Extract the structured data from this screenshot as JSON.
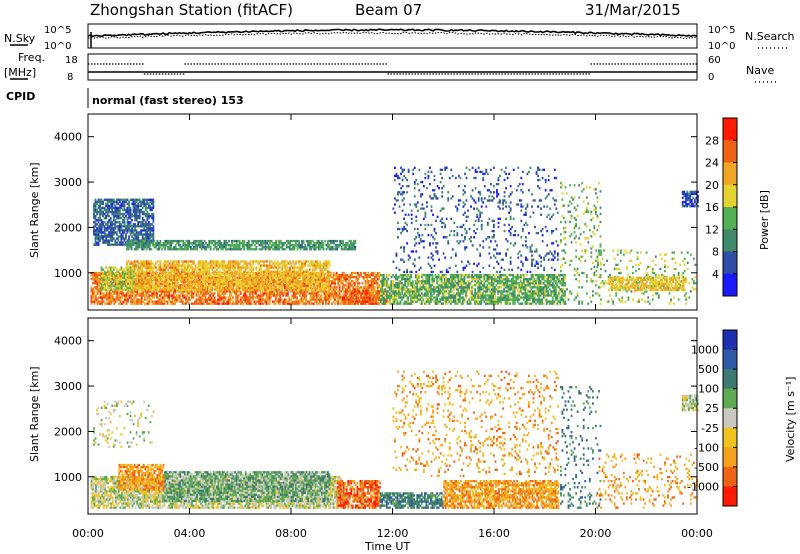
{
  "header": {
    "station": "Zhongshan Station (fitACF)",
    "beam": "Beam 07",
    "date": "31/Mar/2015"
  },
  "sky_panel": {
    "left_label": "N.Sky",
    "right_label": "N.Search",
    "ticks": [
      "10^5",
      "10^0"
    ]
  },
  "freq_panel": {
    "left_label_top": "Freq.",
    "left_label_bottom": "[MHz]",
    "left_ticks": [
      "18",
      "8"
    ],
    "right_label": "Nave",
    "right_ticks": [
      "60",
      "0"
    ]
  },
  "cpid": {
    "label": "CPID",
    "mode": "normal (fast stereo) 153"
  },
  "x_axis": {
    "title": "Time UT",
    "ticks": [
      "00:00",
      "04:00",
      "08:00",
      "12:00",
      "16:00",
      "20:00",
      "00:00"
    ]
  },
  "colors": {
    "power_scale": [
      "#1a1aff",
      "#2d4fa8",
      "#3e8a6a",
      "#52b052",
      "#e6d22e",
      "#f0a524",
      "#ef6414",
      "#ff1a00"
    ],
    "velocity_scale": [
      "#ff1a00",
      "#ef6414",
      "#f7a21f",
      "#f2c21f",
      "#c9c9c0",
      "#5eaa53",
      "#3d7a72",
      "#2e5aa8",
      "#1e2fb0"
    ]
  },
  "chart_data": [
    {
      "type": "heatmap",
      "name": "power",
      "ylabel": "Slant Range [km]",
      "yticks": [
        "4000",
        "3000",
        "2000",
        "1000"
      ],
      "ylim": [
        180,
        4500
      ],
      "xlim": [
        0,
        24
      ],
      "colorbar_label": "Power [dB]",
      "colorbar_ticks": [
        "28",
        "24",
        "20",
        "16",
        "12",
        "8",
        "4"
      ],
      "colorbar_range": [
        0,
        32
      ],
      "regions": [
        {
          "t0": 0.1,
          "t1": 11.5,
          "r0": 300,
          "r1": 1000,
          "value": 26
        },
        {
          "t0": 1.5,
          "t1": 9.5,
          "r0": 600,
          "r1": 1250,
          "value": 21
        },
        {
          "t0": 0.5,
          "t1": 1.8,
          "r0": 600,
          "r1": 1100,
          "value": 17
        },
        {
          "t0": 10.0,
          "t1": 11.8,
          "r0": 300,
          "r1": 600,
          "value": 28
        },
        {
          "t0": 0.2,
          "t1": 2.6,
          "r0": 1600,
          "r1": 2600,
          "value": 6
        },
        {
          "t0": 1.5,
          "t1": 10.5,
          "r0": 1500,
          "r1": 1700,
          "value": 11
        },
        {
          "t0": 11.5,
          "t1": 18.8,
          "r0": 300,
          "r1": 950,
          "value": 13
        },
        {
          "t0": 12.0,
          "t1": 18.5,
          "r0": 1000,
          "r1": 3300,
          "value": 5
        },
        {
          "t0": 18.6,
          "t1": 20.2,
          "r0": 300,
          "r1": 3000,
          "value": 14
        },
        {
          "t0": 20.0,
          "t1": 24.0,
          "r0": 300,
          "r1": 1500,
          "value": 15
        },
        {
          "t0": 20.5,
          "t1": 23.5,
          "r0": 600,
          "r1": 900,
          "value": 20
        },
        {
          "t0": 23.4,
          "t1": 24.0,
          "r0": 2450,
          "r1": 2800,
          "value": 4
        }
      ]
    },
    {
      "type": "heatmap",
      "name": "velocity",
      "ylabel": "Slant Range [km]",
      "yticks": [
        "4000",
        "3000",
        "2000",
        "1000"
      ],
      "ylim": [
        180,
        4500
      ],
      "xlim": [
        0,
        24
      ],
      "colorbar_label": "Velocity [m s⁻¹]",
      "colorbar_ticks": [
        "1000",
        "500",
        "100",
        "25",
        "-25",
        "-100",
        "-500",
        "-1000"
      ],
      "regions": [
        {
          "t0": 0.1,
          "t1": 10.0,
          "r0": 300,
          "r1": 1000,
          "value": 4
        },
        {
          "t0": 3.0,
          "t1": 9.5,
          "r0": 450,
          "r1": 1100,
          "value": 5
        },
        {
          "t0": 1.2,
          "t1": 3.0,
          "r0": 700,
          "r1": 1250,
          "value": 2
        },
        {
          "t0": 9.8,
          "t1": 11.5,
          "r0": 300,
          "r1": 900,
          "value": 1
        },
        {
          "t0": 11.5,
          "t1": 14.0,
          "r0": 300,
          "r1": 650,
          "value": 6
        },
        {
          "t0": 14.0,
          "t1": 18.5,
          "r0": 300,
          "r1": 900,
          "value": 2
        },
        {
          "t0": 0.2,
          "t1": 2.6,
          "r0": 1600,
          "r1": 2650,
          "value": 4
        },
        {
          "t0": 12.0,
          "t1": 18.5,
          "r0": 1000,
          "r1": 3300,
          "value": 2
        },
        {
          "t0": 18.6,
          "t1": 20.2,
          "r0": 300,
          "r1": 3000,
          "value": 6
        },
        {
          "t0": 20.0,
          "t1": 24.0,
          "r0": 300,
          "r1": 1500,
          "value": 2
        },
        {
          "t0": 23.4,
          "t1": 24.0,
          "r0": 2450,
          "r1": 2800,
          "value": 4
        }
      ]
    }
  ]
}
